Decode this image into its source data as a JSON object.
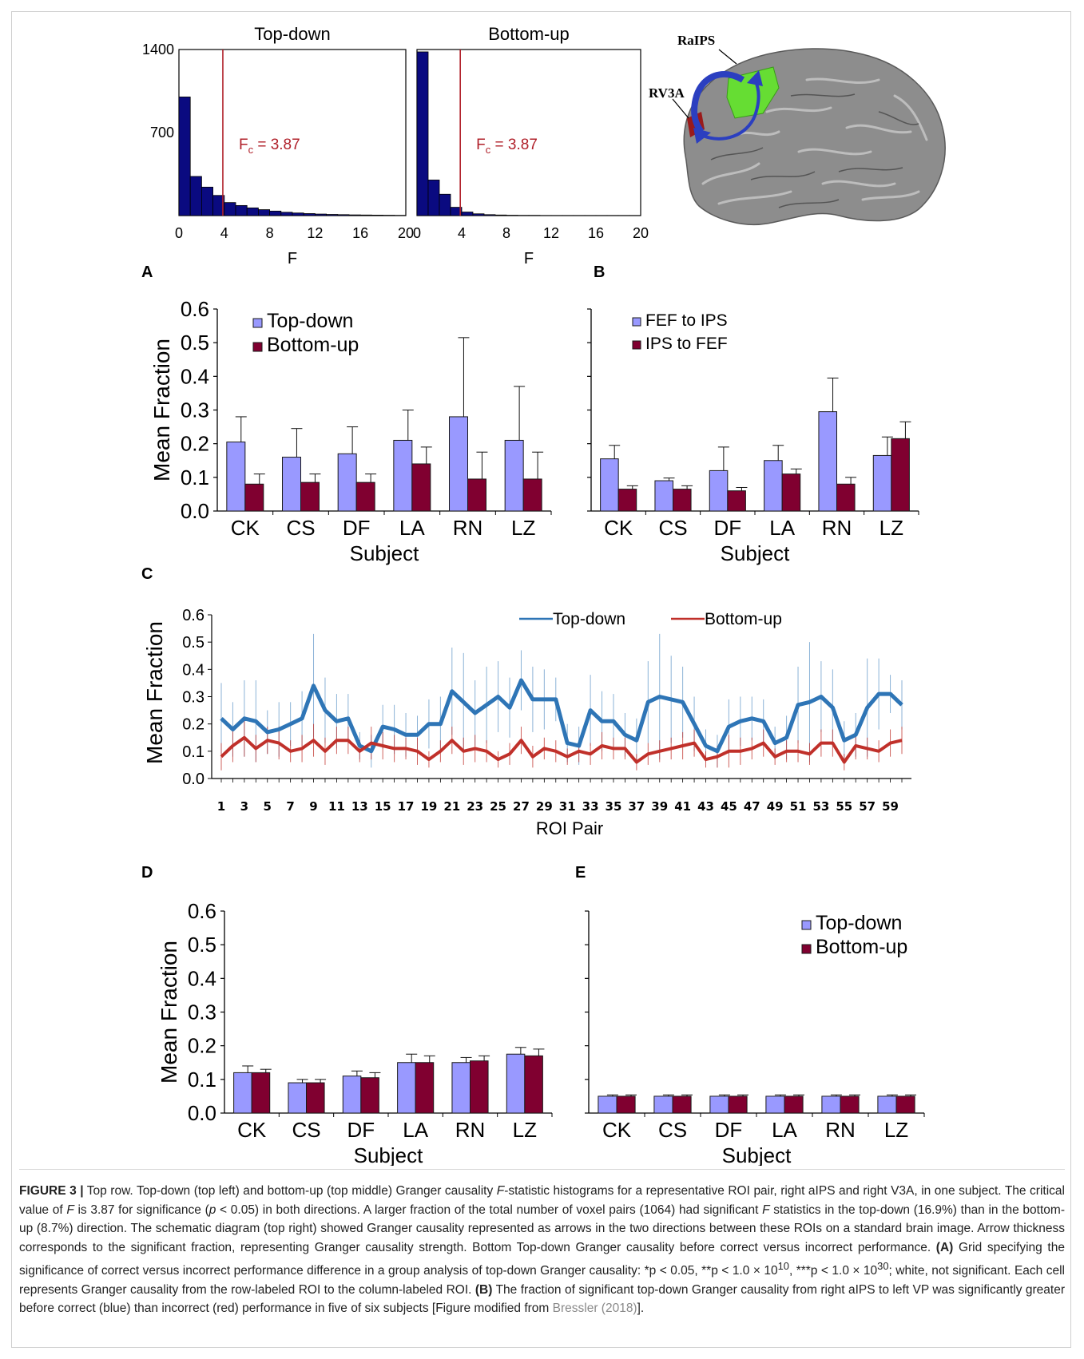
{
  "colors": {
    "blue": "#9999ff",
    "maroon": "#800030",
    "hist_blue": "#0a0a80",
    "red_line": "#b0202a",
    "line_blue": "#2e75b6",
    "line_red": "#c0302a",
    "green_roi": "#66dd33",
    "arrow_blue": "#2b3fc0"
  },
  "panels": {
    "A": "A",
    "B": "B",
    "C": "C",
    "D": "D",
    "E": "E"
  },
  "brain": {
    "label_raips": "RaIPS",
    "label_rv3a": "RV3A"
  },
  "chart_data": [
    {
      "id": "hist-topdown",
      "type": "bar",
      "title": "Top-down",
      "xlabel": "F",
      "xlim": [
        0,
        20
      ],
      "ylim": [
        0,
        1400
      ],
      "xticks": [
        "0",
        "4",
        "8",
        "12",
        "16",
        "20"
      ],
      "yticks": [
        "700",
        "1400"
      ],
      "bin_width": 1,
      "values": [
        1000,
        330,
        240,
        170,
        110,
        85,
        65,
        50,
        38,
        28,
        22,
        17,
        13,
        10,
        8,
        6,
        5,
        4,
        3,
        2
      ],
      "critical_value": 3.87,
      "critical_label": "F",
      "critical_label_sub": "c",
      "critical_label_rest": " = 3.87"
    },
    {
      "id": "hist-bottomup",
      "type": "bar",
      "title": "Bottom-up",
      "xlabel": "F",
      "xlim": [
        0,
        20
      ],
      "ylim": [
        0,
        1400
      ],
      "xticks": [
        "0",
        "4",
        "8",
        "12",
        "16",
        "20"
      ],
      "bin_width": 1,
      "values": [
        1380,
        300,
        180,
        70,
        30,
        15,
        8,
        5,
        3,
        2,
        2,
        1,
        1,
        1,
        1,
        1,
        1,
        1,
        1,
        1
      ],
      "critical_value": 3.87,
      "critical_label": "F",
      "critical_label_sub": "c",
      "critical_label_rest": " = 3.87"
    },
    {
      "id": "bar-b-left",
      "type": "bar",
      "xlabel": "Subject",
      "ylabel": "Mean Fraction",
      "ylim": [
        0,
        0.6
      ],
      "yticks": [
        "0.0",
        "0.1",
        "0.2",
        "0.3",
        "0.4",
        "0.5",
        "0.6"
      ],
      "categories": [
        "CK",
        "CS",
        "DF",
        "LA",
        "RN",
        "LZ"
      ],
      "series": [
        {
          "name": "Top-down",
          "values": [
            0.205,
            0.16,
            0.17,
            0.21,
            0.28,
            0.21
          ],
          "errors": [
            0.075,
            0.085,
            0.08,
            0.09,
            0.235,
            0.16
          ]
        },
        {
          "name": "Bottom-up",
          "values": [
            0.08,
            0.085,
            0.085,
            0.14,
            0.095,
            0.095
          ],
          "errors": [
            0.03,
            0.025,
            0.025,
            0.05,
            0.08,
            0.08
          ]
        }
      ]
    },
    {
      "id": "bar-b-right",
      "type": "bar",
      "xlabel": "Subject",
      "ylim": [
        0,
        0.6
      ],
      "yticks": [],
      "categories": [
        "CK",
        "CS",
        "DF",
        "LA",
        "RN",
        "LZ"
      ],
      "series": [
        {
          "name": "FEF to IPS",
          "values": [
            0.155,
            0.09,
            0.12,
            0.15,
            0.295,
            0.165
          ],
          "errors": [
            0.04,
            0.008,
            0.07,
            0.045,
            0.1,
            0.055
          ]
        },
        {
          "name": "IPS to FEF",
          "values": [
            0.065,
            0.065,
            0.06,
            0.11,
            0.08,
            0.215
          ],
          "errors": [
            0.01,
            0.01,
            0.01,
            0.015,
            0.02,
            0.05
          ]
        }
      ]
    },
    {
      "id": "line-c",
      "type": "line",
      "xlabel": "ROI Pair",
      "ylabel": "Mean Fraction",
      "ylim": [
        0,
        0.6
      ],
      "yticks": [
        "0.0",
        "0.1",
        "0.2",
        "0.3",
        "0.4",
        "0.5",
        "0.6"
      ],
      "xticks": [
        "1",
        "3",
        "5",
        "7",
        "9",
        "11",
        "13",
        "15",
        "17",
        "19",
        "21",
        "23",
        "25",
        "27",
        "29",
        "31",
        "33",
        "35",
        "37",
        "39",
        "41",
        "43",
        "45",
        "47",
        "49",
        "51",
        "53",
        "55",
        "57",
        "59"
      ],
      "x": [
        1,
        2,
        3,
        4,
        5,
        6,
        7,
        8,
        9,
        10,
        11,
        12,
        13,
        14,
        15,
        16,
        17,
        18,
        19,
        20,
        21,
        22,
        23,
        24,
        25,
        26,
        27,
        28,
        29,
        30,
        31,
        32,
        33,
        34,
        35,
        36,
        37,
        38,
        39,
        40,
        41,
        42,
        43,
        44,
        45,
        46,
        47,
        48,
        49,
        50,
        51,
        52,
        53,
        54,
        55,
        56,
        57,
        58,
        59,
        60
      ],
      "series": [
        {
          "name": "Top-down",
          "values": [
            0.22,
            0.18,
            0.22,
            0.21,
            0.17,
            0.18,
            0.2,
            0.22,
            0.34,
            0.25,
            0.21,
            0.22,
            0.12,
            0.1,
            0.19,
            0.18,
            0.16,
            0.16,
            0.2,
            0.2,
            0.32,
            0.28,
            0.24,
            0.27,
            0.3,
            0.26,
            0.36,
            0.29,
            0.29,
            0.29,
            0.13,
            0.12,
            0.25,
            0.21,
            0.21,
            0.16,
            0.14,
            0.28,
            0.3,
            0.29,
            0.28,
            0.2,
            0.12,
            0.1,
            0.19,
            0.21,
            0.22,
            0.21,
            0.13,
            0.15,
            0.27,
            0.28,
            0.3,
            0.26,
            0.14,
            0.16,
            0.26,
            0.31,
            0.31,
            0.27
          ],
          "errors": [
            0.13,
            0.1,
            0.14,
            0.15,
            0.08,
            0.1,
            0.08,
            0.1,
            0.19,
            0.12,
            0.1,
            0.09,
            0.05,
            0.06,
            0.08,
            0.09,
            0.08,
            0.07,
            0.09,
            0.1,
            0.16,
            0.18,
            0.12,
            0.14,
            0.13,
            0.11,
            0.11,
            0.12,
            0.11,
            0.08,
            0.07,
            0.07,
            0.13,
            0.11,
            0.1,
            0.08,
            0.08,
            0.15,
            0.23,
            0.16,
            0.13,
            0.1,
            0.06,
            0.06,
            0.1,
            0.09,
            0.08,
            0.08,
            0.06,
            0.08,
            0.14,
            0.22,
            0.13,
            0.14,
            0.07,
            0.08,
            0.18,
            0.13,
            0.07,
            0.09
          ]
        },
        {
          "name": "Bottom-up",
          "values": [
            0.08,
            0.12,
            0.15,
            0.11,
            0.14,
            0.13,
            0.1,
            0.11,
            0.14,
            0.1,
            0.14,
            0.14,
            0.1,
            0.13,
            0.12,
            0.11,
            0.11,
            0.1,
            0.07,
            0.1,
            0.14,
            0.1,
            0.11,
            0.1,
            0.07,
            0.09,
            0.14,
            0.08,
            0.11,
            0.1,
            0.08,
            0.1,
            0.09,
            0.12,
            0.11,
            0.11,
            0.06,
            0.09,
            0.1,
            0.11,
            0.12,
            0.13,
            0.07,
            0.08,
            0.1,
            0.1,
            0.11,
            0.13,
            0.08,
            0.1,
            0.1,
            0.09,
            0.13,
            0.13,
            0.06,
            0.12,
            0.11,
            0.1,
            0.13,
            0.14
          ],
          "errors": [
            0.05,
            0.06,
            0.07,
            0.05,
            0.05,
            0.06,
            0.04,
            0.05,
            0.06,
            0.05,
            0.05,
            0.05,
            0.04,
            0.06,
            0.05,
            0.05,
            0.04,
            0.05,
            0.03,
            0.04,
            0.05,
            0.05,
            0.05,
            0.04,
            0.03,
            0.04,
            0.05,
            0.04,
            0.04,
            0.04,
            0.03,
            0.04,
            0.04,
            0.05,
            0.04,
            0.04,
            0.03,
            0.04,
            0.04,
            0.04,
            0.05,
            0.05,
            0.03,
            0.04,
            0.06,
            0.05,
            0.04,
            0.05,
            0.03,
            0.04,
            0.04,
            0.04,
            0.05,
            0.05,
            0.03,
            0.05,
            0.04,
            0.04,
            0.05,
            0.05
          ]
        }
      ]
    },
    {
      "id": "bar-d",
      "type": "bar",
      "xlabel": "Subject",
      "ylabel": "Mean Fraction",
      "ylim": [
        0,
        0.6
      ],
      "yticks": [
        "0.0",
        "0.1",
        "0.2",
        "0.3",
        "0.4",
        "0.5",
        "0.6"
      ],
      "categories": [
        "CK",
        "CS",
        "DF",
        "LA",
        "RN",
        "LZ"
      ],
      "series": [
        {
          "name": "Top-down",
          "values": [
            0.12,
            0.09,
            0.11,
            0.15,
            0.15,
            0.175
          ],
          "errors": [
            0.02,
            0.01,
            0.015,
            0.025,
            0.015,
            0.02
          ]
        },
        {
          "name": "Bottom-up",
          "values": [
            0.12,
            0.09,
            0.105,
            0.15,
            0.155,
            0.17
          ],
          "errors": [
            0.01,
            0.01,
            0.015,
            0.02,
            0.015,
            0.02
          ]
        }
      ]
    },
    {
      "id": "bar-e",
      "type": "bar",
      "xlabel": "Subject",
      "ylim": [
        0,
        0.6
      ],
      "yticks": [],
      "categories": [
        "CK",
        "CS",
        "DF",
        "LA",
        "RN",
        "LZ"
      ],
      "series": [
        {
          "name": "Top-down",
          "values": [
            0.05,
            0.05,
            0.05,
            0.05,
            0.05,
            0.05
          ],
          "errors": [
            0.004,
            0.004,
            0.004,
            0.004,
            0.004,
            0.004
          ]
        },
        {
          "name": "Bottom-up",
          "values": [
            0.05,
            0.05,
            0.05,
            0.05,
            0.05,
            0.05
          ],
          "errors": [
            0.004,
            0.004,
            0.004,
            0.004,
            0.004,
            0.004
          ]
        }
      ]
    }
  ],
  "caption": {
    "fig_label": "FIGURE 3 |",
    "p1": " Top row. Top-down (top left) and bottom-up (top middle) Granger causality ",
    "f1": "F",
    "p2": "-statistic histograms for a representative ROI pair, right aIPS and right V3A, in one subject. The critical value of ",
    "f2": "F",
    "p3": " is 3.87 for significance (",
    "pv": "p",
    "p4": " < 0.05) in both directions. A larger fraction of the total number of voxel pairs (1064) had significant ",
    "f3": "F",
    "p5": " statistics in the top-down (16.9%) than in the bottom-up (8.7%) direction. The schematic diagram (top right) showed Granger causality represented as arrows in the two directions between these ROIs on a standard brain image. Arrow thickness corresponds to the significant fraction, representing Granger causality strength. Bottom Top-down Granger causality before correct versus incorrect performance. ",
    "la": "(A)",
    "p6": " Grid specifying the significance of correct versus incorrect performance difference in a group analysis of top-down Granger causality: ",
    "s1": "*p < 0.05, **p < 1.0 × 10",
    "e1": "10",
    "s2": ", ***p < 1.0 × 10",
    "e2": "30",
    "p7": "; white, not significant. Each cell represents Granger causality from the row-labeled ROI to the column-labeled ROI. ",
    "lb": "(B)",
    "p8": " The fraction of significant top-down Granger causality from right aIPS to left VP was significantly greater before correct (blue) than incorrect (red) performance in five of six subjects [Figure modified from ",
    "ref": "Bressler (2018)",
    "p9": "]."
  }
}
